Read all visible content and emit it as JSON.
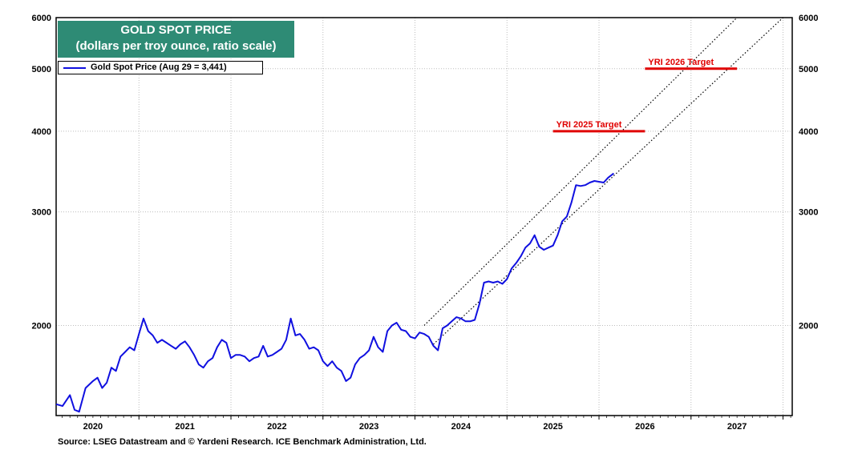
{
  "chart_data": {
    "type": "line",
    "title": "GOLD SPOT PRICE",
    "subtitle": "(dollars per troy ounce, ratio scale)",
    "yscale": "log",
    "ylim": [
      1450,
      6000
    ],
    "y_ticks": [
      2000,
      3000,
      4000,
      5000,
      6000
    ],
    "x_range": [
      2019.6,
      2027.6
    ],
    "x_tick_labels": [
      "2020",
      "2021",
      "2022",
      "2023",
      "2024",
      "2025",
      "2026",
      "2027"
    ],
    "grid": true,
    "legend_position": "top-left",
    "series": [
      {
        "name": "Gold Spot Price (Aug 29 = 3,441)",
        "color": "#1010e0",
        "points": [
          [
            2019.6,
            1510
          ],
          [
            2019.67,
            1500
          ],
          [
            2019.75,
            1560
          ],
          [
            2019.8,
            1480
          ],
          [
            2019.85,
            1470
          ],
          [
            2019.92,
            1600
          ],
          [
            2020.0,
            1640
          ],
          [
            2020.05,
            1660
          ],
          [
            2020.1,
            1600
          ],
          [
            2020.15,
            1630
          ],
          [
            2020.2,
            1720
          ],
          [
            2020.25,
            1700
          ],
          [
            2020.3,
            1790
          ],
          [
            2020.35,
            1820
          ],
          [
            2020.4,
            1850
          ],
          [
            2020.45,
            1830
          ],
          [
            2020.5,
            1940
          ],
          [
            2020.55,
            2050
          ],
          [
            2020.6,
            1960
          ],
          [
            2020.65,
            1930
          ],
          [
            2020.7,
            1880
          ],
          [
            2020.75,
            1900
          ],
          [
            2020.8,
            1880
          ],
          [
            2020.85,
            1860
          ],
          [
            2020.9,
            1840
          ],
          [
            2020.95,
            1870
          ],
          [
            2021.0,
            1890
          ],
          [
            2021.05,
            1850
          ],
          [
            2021.1,
            1800
          ],
          [
            2021.15,
            1740
          ],
          [
            2021.2,
            1720
          ],
          [
            2021.25,
            1760
          ],
          [
            2021.3,
            1780
          ],
          [
            2021.35,
            1850
          ],
          [
            2021.4,
            1900
          ],
          [
            2021.45,
            1880
          ],
          [
            2021.5,
            1780
          ],
          [
            2021.55,
            1800
          ],
          [
            2021.6,
            1800
          ],
          [
            2021.65,
            1790
          ],
          [
            2021.7,
            1760
          ],
          [
            2021.75,
            1780
          ],
          [
            2021.8,
            1790
          ],
          [
            2021.85,
            1860
          ],
          [
            2021.9,
            1790
          ],
          [
            2021.95,
            1800
          ],
          [
            2022.0,
            1820
          ],
          [
            2022.05,
            1840
          ],
          [
            2022.1,
            1900
          ],
          [
            2022.15,
            2050
          ],
          [
            2022.2,
            1930
          ],
          [
            2022.25,
            1940
          ],
          [
            2022.3,
            1900
          ],
          [
            2022.35,
            1840
          ],
          [
            2022.4,
            1850
          ],
          [
            2022.45,
            1830
          ],
          [
            2022.5,
            1760
          ],
          [
            2022.55,
            1730
          ],
          [
            2022.6,
            1760
          ],
          [
            2022.65,
            1720
          ],
          [
            2022.7,
            1700
          ],
          [
            2022.75,
            1640
          ],
          [
            2022.8,
            1660
          ],
          [
            2022.85,
            1740
          ],
          [
            2022.9,
            1780
          ],
          [
            2022.95,
            1800
          ],
          [
            2023.0,
            1830
          ],
          [
            2023.05,
            1920
          ],
          [
            2023.1,
            1850
          ],
          [
            2023.15,
            1820
          ],
          [
            2023.2,
            1960
          ],
          [
            2023.25,
            2000
          ],
          [
            2023.3,
            2020
          ],
          [
            2023.35,
            1970
          ],
          [
            2023.4,
            1960
          ],
          [
            2023.45,
            1920
          ],
          [
            2023.5,
            1910
          ],
          [
            2023.55,
            1950
          ],
          [
            2023.6,
            1940
          ],
          [
            2023.65,
            1920
          ],
          [
            2023.7,
            1860
          ],
          [
            2023.75,
            1830
          ],
          [
            2023.8,
            1980
          ],
          [
            2023.85,
            2000
          ],
          [
            2023.9,
            2030
          ],
          [
            2023.95,
            2060
          ],
          [
            2024.0,
            2050
          ],
          [
            2024.05,
            2030
          ],
          [
            2024.1,
            2030
          ],
          [
            2024.15,
            2040
          ],
          [
            2024.2,
            2160
          ],
          [
            2024.25,
            2330
          ],
          [
            2024.3,
            2340
          ],
          [
            2024.35,
            2330
          ],
          [
            2024.4,
            2340
          ],
          [
            2024.45,
            2320
          ],
          [
            2024.5,
            2360
          ],
          [
            2024.55,
            2450
          ],
          [
            2024.6,
            2500
          ],
          [
            2024.65,
            2560
          ],
          [
            2024.7,
            2640
          ],
          [
            2024.75,
            2680
          ],
          [
            2024.8,
            2760
          ],
          [
            2024.85,
            2650
          ],
          [
            2024.9,
            2620
          ],
          [
            2024.95,
            2640
          ],
          [
            2025.0,
            2660
          ],
          [
            2025.05,
            2760
          ],
          [
            2025.1,
            2900
          ],
          [
            2025.15,
            2950
          ],
          [
            2025.2,
            3100
          ],
          [
            2025.25,
            3300
          ],
          [
            2025.3,
            3290
          ],
          [
            2025.35,
            3300
          ],
          [
            2025.4,
            3330
          ],
          [
            2025.45,
            3350
          ],
          [
            2025.5,
            3340
          ],
          [
            2025.55,
            3330
          ],
          [
            2025.6,
            3390
          ],
          [
            2025.66,
            3441
          ]
        ]
      }
    ],
    "channel_lines": [
      {
        "name": "upper-trend-channel",
        "style": "dotted",
        "from": [
          2023.6,
          2000
        ],
        "to": [
          2027.0,
          6000
        ]
      },
      {
        "name": "lower-trend-channel",
        "style": "dotted",
        "from": [
          2023.7,
          1870
        ],
        "to": [
          2027.5,
          6000
        ]
      }
    ],
    "targets": [
      {
        "label": "YRI 2025 Target",
        "value": 4000,
        "x_start": 2025.0,
        "x_end": 2026.0,
        "color": "#e00000"
      },
      {
        "label": "YRI 2026 Target",
        "value": 5000,
        "x_start": 2026.0,
        "x_end": 2027.0,
        "color": "#e00000"
      }
    ]
  },
  "legend": {
    "label": "Gold Spot Price (Aug 29 = 3,441)"
  },
  "source": "Source: LSEG Datastream and © Yardeni Research. ICE Benchmark Administration, Ltd."
}
